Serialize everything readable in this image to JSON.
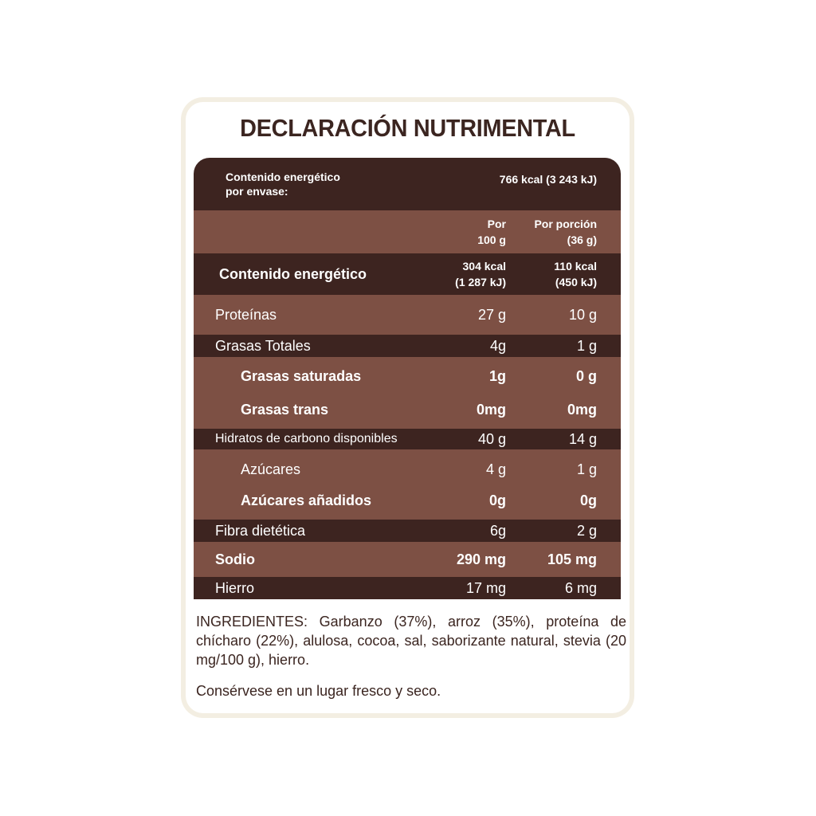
{
  "title": "DECLARACIÓN NUTRIMENTAL",
  "energy_per_package": {
    "label_line1": "Contenido energético",
    "label_line2": "por envase:",
    "value": "766 kcal (3 243 kJ)"
  },
  "columns": {
    "per100_line1": "Por",
    "per100_line2": "100 g",
    "perserving_line1": "Por porción",
    "perserving_line2": "(36 g)"
  },
  "energy": {
    "label": "Contenido energético",
    "per100_line1": "304 kcal",
    "per100_line2": "(1 287 kJ)",
    "perserving_line1": "110 kcal",
    "perserving_line2": "(450 kJ)"
  },
  "rows": [
    {
      "label": "Proteínas",
      "per100": "27 g",
      "perserving": "10 g"
    },
    {
      "label": "Grasas Totales",
      "per100": "4g",
      "perserving": "1 g"
    },
    {
      "label": "Grasas saturadas",
      "per100": "1g",
      "perserving": "0 g"
    },
    {
      "label": "Grasas trans",
      "per100": "0mg",
      "perserving": "0mg"
    },
    {
      "label": "Hidratos de carbono disponibles",
      "per100": "40 g",
      "perserving": "14 g"
    },
    {
      "label": "Azúcares",
      "per100": "4 g",
      "perserving": "1 g"
    },
    {
      "label": "Azúcares añadidos",
      "per100": "0g",
      "perserving": "0g"
    },
    {
      "label": "Fibra dietética",
      "per100": "6g",
      "perserving": "2 g"
    },
    {
      "label": "Sodio",
      "per100": "290 mg",
      "perserving": "105 mg"
    },
    {
      "label": "Hierro",
      "per100": "17 mg",
      "perserving": "6 mg"
    }
  ],
  "ingredients": "INGREDIENTES: Garbanzo (37%), arroz (35%), proteína de chícharo (22%), alulosa, cocoa, sal, saborizante natural, stevia (20 mg/100 g), hierro.",
  "storage": "Consérvese en un lugar fresco y seco.",
  "colors": {
    "dark_row": "#3d2420",
    "light_row": "#7d5044",
    "title_text": "#3b2520"
  }
}
